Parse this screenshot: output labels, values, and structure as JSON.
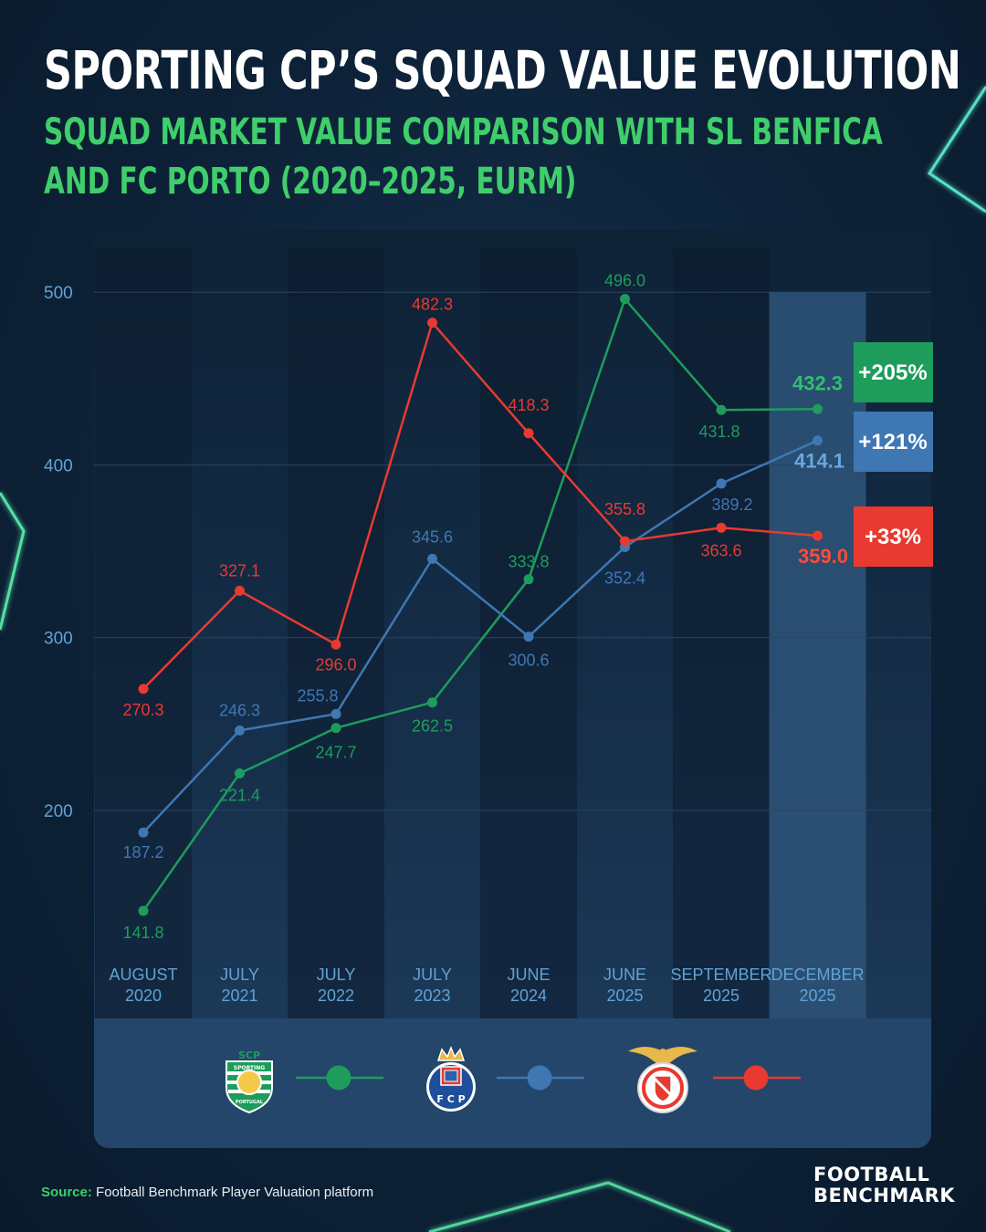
{
  "header": {
    "title": "SPORTING CP’S SQUAD VALUE EVOLUTION",
    "subtitle_line1": "SQUAD MARKET VALUE COMPARISON WITH SL BENFICA",
    "subtitle_line2": "AND FC PORTO (2020–2025, EURM)"
  },
  "colors": {
    "sporting": "#1e9c5c",
    "porto": "#3f77b3",
    "benfica": "#e83a30",
    "accent_green": "#3fce6b",
    "grid": "#2a4560",
    "axis_text": "#5fa3d6"
  },
  "chart_data": {
    "type": "line",
    "x": [
      [
        "AUGUST",
        "2020"
      ],
      [
        "JULY",
        "2021"
      ],
      [
        "JULY",
        "2022"
      ],
      [
        "JULY",
        "2023"
      ],
      [
        "JUNE",
        "2024"
      ],
      [
        "JUNE",
        "2025"
      ],
      [
        "SEPTEMBER",
        "2025"
      ],
      [
        "DECEMBER",
        "2025"
      ]
    ],
    "yticks": [
      200,
      300,
      400,
      500
    ],
    "ylim": [
      130,
      520
    ],
    "highlight_category": 7,
    "series": [
      {
        "key": "sporting",
        "values": [
          141.8,
          221.4,
          247.7,
          262.5,
          333.8,
          496.0,
          431.8,
          432.3
        ],
        "labels": [
          "141.8",
          "221.4",
          "247.7",
          "262.5",
          "333.8",
          "496.0",
          "431.8",
          "432.3"
        ],
        "change": "+205%",
        "crest": "sporting-crest"
      },
      {
        "key": "porto",
        "values": [
          187.2,
          246.3,
          255.8,
          345.6,
          300.6,
          352.4,
          389.2,
          414.1
        ],
        "labels": [
          "187.2",
          "246.3",
          "255.8",
          "345.6",
          "300.6",
          "352.4",
          "389.2",
          "414.1"
        ],
        "change": "+121%",
        "crest": "porto-crest"
      },
      {
        "key": "benfica",
        "values": [
          270.3,
          327.1,
          296.0,
          482.3,
          418.3,
          355.8,
          363.6,
          359.0
        ],
        "labels": [
          "270.3",
          "327.1",
          "296.0",
          "482.3",
          "418.3",
          "355.8",
          "363.6",
          "359.0"
        ],
        "change": "+33%",
        "crest": "benfica-crest"
      }
    ]
  },
  "logos": {
    "sporting_text_top": "SCP",
    "sporting_text_ring": "SPORTING",
    "sporting_text_bottom": "PORTUGAL",
    "porto_letters": "F C P"
  },
  "footer": {
    "source_label": "Source:",
    "source_text": "Football Benchmark Player Valuation platform",
    "brand_line1": "FOOTBALL",
    "brand_line2": "BENCHMARK"
  }
}
